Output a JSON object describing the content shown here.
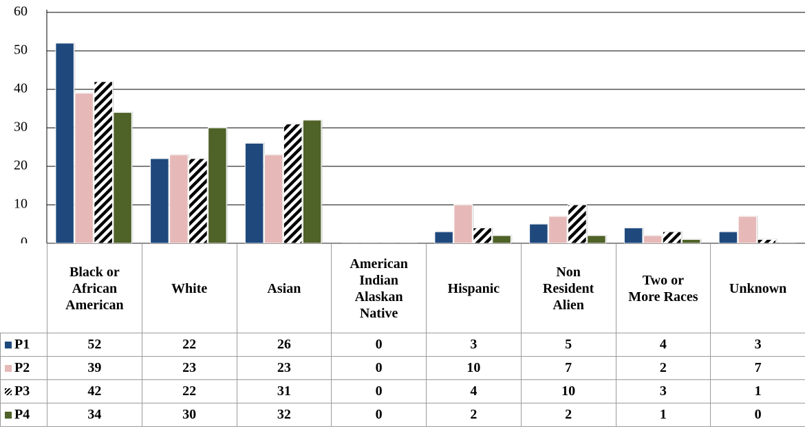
{
  "chart_data": {
    "type": "bar",
    "categories": [
      "Black or African American",
      "White",
      "Asian",
      "American Indian Alaskan Native",
      "Hispanic",
      "Non Resident Alien",
      "Two or More Races",
      "Unknown"
    ],
    "series": [
      {
        "name": "P1",
        "color": "#1f497d",
        "values": [
          52,
          22,
          26,
          0,
          3,
          5,
          4,
          3
        ]
      },
      {
        "name": "P2",
        "color": "#e6b9b8",
        "values": [
          39,
          23,
          23,
          0,
          10,
          7,
          2,
          7
        ]
      },
      {
        "name": "P3",
        "color": "#000000",
        "pattern": "diagonal-stripes",
        "values": [
          42,
          22,
          31,
          0,
          4,
          10,
          3,
          1
        ]
      },
      {
        "name": "P4",
        "color": "#4f6228",
        "values": [
          34,
          30,
          32,
          0,
          2,
          2,
          1,
          0
        ]
      }
    ],
    "ylim": [
      0,
      60
    ],
    "yticks": [
      0,
      10,
      20,
      30,
      40,
      50,
      60
    ],
    "grid": true,
    "data_table": true
  }
}
